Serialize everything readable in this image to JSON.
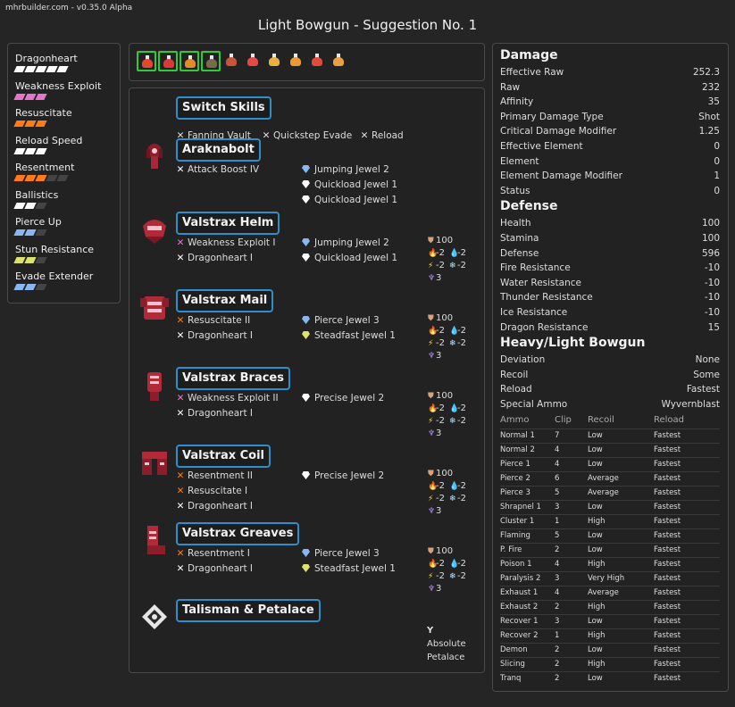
{
  "header": {
    "version": "mhrbuilder.com - v0.35.0 Alpha",
    "title": "Light Bowgun - Suggestion No. 1"
  },
  "skills": [
    {
      "name": "Dragonheart",
      "level": 5,
      "max": 5,
      "color": "#ffffff"
    },
    {
      "name": "Weakness Exploit",
      "level": 3,
      "max": 3,
      "color": "#e377c8"
    },
    {
      "name": "Resuscitate",
      "level": 3,
      "max": 3,
      "color": "#ff7a1a"
    },
    {
      "name": "Reload Speed",
      "level": 3,
      "max": 3,
      "color": "#ffffff"
    },
    {
      "name": "Resentment",
      "level": 3,
      "max": 5,
      "color": "#ff7a1a"
    },
    {
      "name": "Ballistics",
      "level": 2,
      "max": 3,
      "color": "#ffffff"
    },
    {
      "name": "Pierce Up",
      "level": 2,
      "max": 3,
      "color": "#8ab6f2"
    },
    {
      "name": "Stun Resistance",
      "level": 2,
      "max": 3,
      "color": "#dde36a"
    },
    {
      "name": "Evade Extender",
      "level": 2,
      "max": 3,
      "color": "#8ab6f2"
    }
  ],
  "decorations": [
    {
      "icon": "flask-icon",
      "color": "#e5462f",
      "selected": true
    },
    {
      "icon": "flask-icon",
      "color": "#d83a3a",
      "selected": true
    },
    {
      "icon": "flask-icon",
      "color": "#e58a2b",
      "selected": true
    },
    {
      "icon": "flask-icon",
      "color": "#7a6a4a",
      "selected": true
    },
    {
      "icon": "flask-icon",
      "color": "#c8553a",
      "selected": false
    },
    {
      "icon": "flask-icon",
      "color": "#e04a4a",
      "selected": false
    },
    {
      "icon": "flask-icon",
      "color": "#e7b040",
      "selected": false
    },
    {
      "icon": "flask-icon",
      "color": "#e89a35",
      "selected": false
    },
    {
      "icon": "flask-icon",
      "color": "#e04b3a",
      "selected": false
    },
    {
      "icon": "flask-icon",
      "color": "#e8a040",
      "selected": false
    }
  ],
  "switch_skills": {
    "title": "Switch Skills",
    "items": [
      "Fanning Vault",
      "Quickstep Evade",
      "Reload"
    ]
  },
  "armor": [
    {
      "name": "Araknabolt",
      "icon": "bowgun-icon",
      "skills": [
        {
          "name": "Attack Boost IV",
          "color": "#ffffff"
        }
      ],
      "jewels": [
        {
          "name": "Jumping Jewel 2",
          "color": "#8ab6f2"
        },
        {
          "name": "Quickload Jewel 1",
          "color": "#ffffff"
        },
        {
          "name": "Quickload Jewel 1",
          "color": "#ffffff"
        }
      ]
    },
    {
      "name": "Valstrax Helm",
      "icon": "helm-icon",
      "skills": [
        {
          "name": "Weakness Exploit I",
          "color": "#e377c8"
        },
        {
          "name": "Dragonheart I",
          "color": "#ffffff"
        }
      ],
      "jewels": [
        {
          "name": "Jumping Jewel 2",
          "color": "#8ab6f2"
        },
        {
          "name": "Quickload Jewel 1",
          "color": "#ffffff"
        }
      ],
      "res": {
        "def": "100",
        "fire": "-2",
        "water": "-2",
        "thunder": "-2",
        "ice": "-2",
        "dragon": "3"
      }
    },
    {
      "name": "Valstrax Mail",
      "icon": "mail-icon",
      "skills": [
        {
          "name": "Resuscitate II",
          "color": "#ff7a1a"
        },
        {
          "name": "Dragonheart I",
          "color": "#ffffff"
        }
      ],
      "jewels": [
        {
          "name": "Pierce Jewel 3",
          "color": "#8ab6f2"
        },
        {
          "name": "Steadfast Jewel 1",
          "color": "#dde36a"
        }
      ],
      "res": {
        "def": "100",
        "fire": "-2",
        "water": "-2",
        "thunder": "-2",
        "ice": "-2",
        "dragon": "3"
      }
    },
    {
      "name": "Valstrax Braces",
      "icon": "braces-icon",
      "skills": [
        {
          "name": "Weakness Exploit II",
          "color": "#e377c8"
        },
        {
          "name": "Dragonheart I",
          "color": "#ffffff"
        }
      ],
      "jewels": [
        {
          "name": "Precise Jewel 2",
          "color": "#ffffff"
        }
      ],
      "res": {
        "def": "100",
        "fire": "-2",
        "water": "-2",
        "thunder": "-2",
        "ice": "-2",
        "dragon": "3"
      }
    },
    {
      "name": "Valstrax Coil",
      "icon": "coil-icon",
      "skills": [
        {
          "name": "Resentment II",
          "color": "#ff7a1a"
        },
        {
          "name": "Resuscitate I",
          "color": "#ff7a1a"
        },
        {
          "name": "Dragonheart I",
          "color": "#ffffff"
        }
      ],
      "jewels": [
        {
          "name": "Precise Jewel 2",
          "color": "#ffffff"
        }
      ],
      "res": {
        "def": "100",
        "fire": "-2",
        "water": "-2",
        "thunder": "-2",
        "ice": "-2",
        "dragon": "3"
      }
    },
    {
      "name": "Valstrax Greaves",
      "icon": "greaves-icon",
      "skills": [
        {
          "name": "Resentment I",
          "color": "#ff7a1a"
        },
        {
          "name": "Dragonheart I",
          "color": "#ffffff"
        }
      ],
      "jewels": [
        {
          "name": "Pierce Jewel 3",
          "color": "#8ab6f2"
        },
        {
          "name": "Steadfast Jewel 1",
          "color": "#dde36a"
        }
      ],
      "res": {
        "def": "100",
        "fire": "-2",
        "water": "-2",
        "thunder": "-2",
        "ice": "-2",
        "dragon": "3"
      }
    },
    {
      "name": "Talisman & Petalace",
      "icon": "talisman-icon",
      "skills": [],
      "jewels": [],
      "petalace": {
        "line1": "Absolute",
        "line2": "Petalace"
      }
    }
  ],
  "stats": {
    "damage": {
      "title": "Damage",
      "rows": [
        [
          "Effective Raw",
          "252.3"
        ],
        [
          "Raw",
          "232"
        ],
        [
          "Affinity",
          "35"
        ],
        [
          "Primary Damage Type",
          "Shot"
        ],
        [
          "Critical Damage Modifier",
          "1.25"
        ],
        [
          "Effective Element",
          "0"
        ],
        [
          "Element",
          "0"
        ],
        [
          "Element Damage Modifier",
          "1"
        ],
        [
          "Status",
          "0"
        ]
      ]
    },
    "defense": {
      "title": "Defense",
      "rows": [
        [
          "Health",
          "100"
        ],
        [
          "Stamina",
          "100"
        ],
        [
          "Defense",
          "596"
        ],
        [
          "Fire Resistance",
          "-10"
        ],
        [
          "Water Resistance",
          "-10"
        ],
        [
          "Thunder Resistance",
          "-10"
        ],
        [
          "Ice Resistance",
          "-10"
        ],
        [
          "Dragon Resistance",
          "15"
        ]
      ]
    },
    "bowgun": {
      "title": "Heavy/Light Bowgun",
      "rows": [
        [
          "Deviation",
          "None"
        ],
        [
          "Recoil",
          "Some"
        ],
        [
          "Reload",
          "Fastest"
        ],
        [
          "Special Ammo",
          "Wyvernblast"
        ]
      ]
    },
    "ammo_headers": [
      "Ammo",
      "Clip",
      "Recoil",
      "Reload"
    ],
    "ammo": [
      [
        "Normal 1",
        "7",
        "Low",
        "Fastest"
      ],
      [
        "Normal 2",
        "4",
        "Low",
        "Fastest"
      ],
      [
        "Pierce 1",
        "4",
        "Low",
        "Fastest"
      ],
      [
        "Pierce 2",
        "6",
        "Average",
        "Fastest"
      ],
      [
        "Pierce 3",
        "5",
        "Average",
        "Fastest"
      ],
      [
        "Shrapnel 1",
        "3",
        "Low",
        "Fastest"
      ],
      [
        "Cluster 1",
        "1",
        "High",
        "Fastest"
      ],
      [
        "Flaming",
        "5",
        "Low",
        "Fastest"
      ],
      [
        "P. Fire",
        "2",
        "Low",
        "Fastest"
      ],
      [
        "Poison 1",
        "4",
        "High",
        "Fastest"
      ],
      [
        "Paralysis 2",
        "3",
        "Very High",
        "Fastest"
      ],
      [
        "Exhaust 1",
        "4",
        "Average",
        "Fastest"
      ],
      [
        "Exhaust 2",
        "2",
        "High",
        "Fastest"
      ],
      [
        "Recover 1",
        "3",
        "Low",
        "Fastest"
      ],
      [
        "Recover 2",
        "1",
        "High",
        "Fastest"
      ],
      [
        "Demon",
        "2",
        "Low",
        "Fastest"
      ],
      [
        "Slicing",
        "2",
        "High",
        "Fastest"
      ],
      [
        "Tranq",
        "2",
        "Low",
        "Fastest"
      ]
    ]
  }
}
